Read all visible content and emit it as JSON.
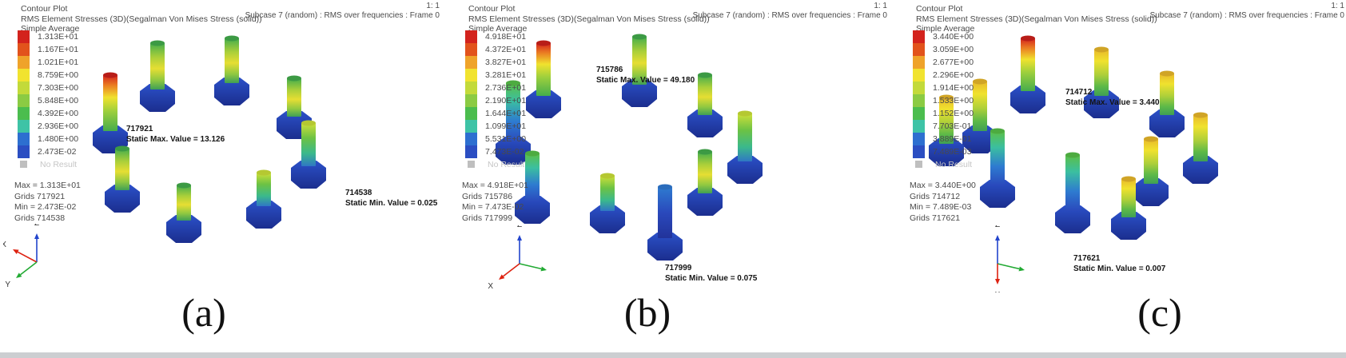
{
  "page": {
    "background": "#ffffff",
    "bottom_strip_color": "#ccced1"
  },
  "legend_colors": [
    "#d3231d",
    "#e2531c",
    "#efa32a",
    "#f1e32f",
    "#c3da3a",
    "#8bcb43",
    "#4bbd4e",
    "#3ec3a6",
    "#2d6fd0",
    "#2b4ec2"
  ],
  "no_result_color": "#bfbfbf",
  "axis_colors": {
    "x": "#dd2211",
    "y": "#22aa33",
    "z": "#2244cc"
  },
  "panels": [
    {
      "caption": "(a)",
      "header_line1": "Contour Plot",
      "header_line2": "RMS Element Stresses (3D)(Segalman Von Mises Stress (solid))",
      "header_line3": "Simple Average",
      "scale": "1: 1",
      "subcase": "Subcase 7 (random) : RMS over frequencies : Frame 0",
      "legend_values": [
        "1.313E+01",
        "1.167E+01",
        "1.021E+01",
        "8.759E+00",
        "7.303E+00",
        "5.848E+00",
        "4.392E+00",
        "2.936E+00",
        "1.480E+00",
        "2.473E-02"
      ],
      "no_result_label": "No Result",
      "stats": [
        "Max = 1.313E+01",
        "Grids 717921",
        "Min = 2.473E-02",
        "Grids 714538"
      ],
      "max_annotation": {
        "grid": "717921",
        "text": "Static Max. Value =  13.126"
      },
      "min_annotation": {
        "grid": "714538",
        "text": "Static Min. Value =  0.025"
      },
      "axes": [
        {
          "label": "Z",
          "dir": "up",
          "color": "#2244cc"
        },
        {
          "label": "X",
          "dir": "upleft",
          "color": "#dd2211"
        },
        {
          "label": "Y",
          "dir": "downleft",
          "color": "#22aa33"
        }
      ]
    },
    {
      "caption": "(b)",
      "header_line1": "Contour Plot",
      "header_line2": "RMS Element Stresses (3D)(Segalman Von Mises Stress (solid))",
      "header_line3": "Simple Average",
      "scale": "1: 1",
      "subcase": "Subcase 7 (random) : RMS over frequencies : Frame 0",
      "legend_values": [
        "4.918E+01",
        "4.372E+01",
        "3.827E+01",
        "3.281E+01",
        "2.736E+01",
        "2.190E+01",
        "1.644E+01",
        "1.099E+01",
        "5.531E+00",
        "7.473E-02"
      ],
      "no_result_label": "No Result",
      "stats": [
        "Max = 4.918E+01",
        "Grids 715786",
        "Min = 7.473E-02",
        "Grids 717999"
      ],
      "max_annotation": {
        "grid": "715786",
        "text": "Static Max. Value =  49.180"
      },
      "min_annotation": {
        "grid": "717999",
        "text": "Static Min. Value =  0.075"
      },
      "axes": [
        {
          "label": "Z",
          "dir": "up",
          "color": "#2244cc"
        },
        {
          "label": "Y",
          "dir": "right",
          "color": "#22aa33"
        },
        {
          "label": "X",
          "dir": "downleft",
          "color": "#dd2211"
        }
      ]
    },
    {
      "caption": "(c)",
      "header_line1": "Contour Plot",
      "header_line2": "RMS Element Stresses (3D)(Segalman Von Mises Stress (solid))",
      "header_line3": "Simple Average",
      "scale": "1: 1",
      "subcase": "Subcase 7 (random) : RMS over frequencies : Frame 0",
      "legend_values": [
        "3.440E+00",
        "3.059E+00",
        "2.677E+00",
        "2.296E+00",
        "1.914E+00",
        "1.533E+00",
        "1.152E+00",
        "7.703E-01",
        "3.889E-01",
        "7.489E-03"
      ],
      "no_result_label": "No Result",
      "stats": [
        "Max = 3.440E+00",
        "Grids 714712",
        "Min = 7.489E-03",
        "Grids 717621"
      ],
      "max_annotation": {
        "grid": "714712",
        "text": "Static Max. Value =  3.440"
      },
      "min_annotation": {
        "grid": "717621",
        "text": "Static Min. Value =  0.007"
      },
      "axes": [
        {
          "label": "Z",
          "dir": "up",
          "color": "#2244cc"
        },
        {
          "label": "Y",
          "dir": "right",
          "color": "#22aa33"
        },
        {
          "label": "X",
          "dir": "down",
          "color": "#dd2211"
        }
      ]
    }
  ]
}
